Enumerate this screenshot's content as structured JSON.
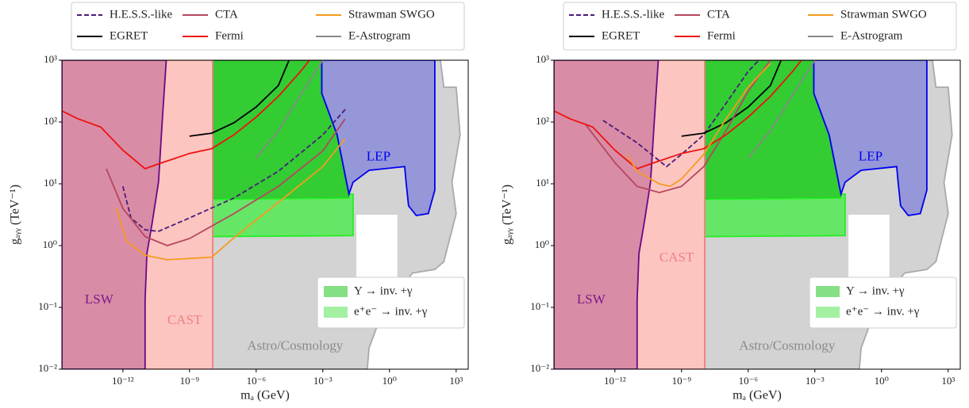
{
  "chart_data": [
    {
      "type": "line",
      "log_x": true,
      "log_y": true,
      "xlabel": "mₐ (GeV)",
      "ylabel": "gₐᵧᵧ (TeV⁻¹)",
      "xlim": [
        1.8e-15,
        3500
      ],
      "ylim": [
        0.01,
        1000
      ],
      "xticks": [
        {
          "value": 1e-12,
          "label": "10⁻¹²"
        },
        {
          "value": 1e-09,
          "label": "10⁻⁹"
        },
        {
          "value": 1e-06,
          "label": "10⁻⁶"
        },
        {
          "value": 0.001,
          "label": "10⁻³"
        },
        {
          "value": 1,
          "label": "10⁰"
        },
        {
          "value": 1000,
          "label": "10³"
        }
      ],
      "yticks": [
        {
          "value": 0.01,
          "label": "10⁻²"
        },
        {
          "value": 0.1,
          "label": "10⁻¹"
        },
        {
          "value": 1,
          "label": "10⁰"
        },
        {
          "value": 10,
          "label": "10¹"
        },
        {
          "value": 100,
          "label": "10²"
        },
        {
          "value": 1000,
          "label": "10³"
        }
      ],
      "regions": [
        {
          "color": "#d3d3d3",
          "edge": "#a9a9a9",
          "x": [
            1.1e-08,
            1.1e-08,
            195,
            280,
            1000,
            1500,
            650,
            1000,
            280,
            110,
            11,
            2.1,
            0.4,
            0.12,
            0.1
          ],
          "y": [
            0.01,
            1000,
            1000,
            365,
            365,
            62,
            10.6,
            3.3,
            0.55,
            0.41,
            0.36,
            0.17,
            0.07,
            0.022,
            0.01
          ]
        },
        {
          "name": "Υ → inv. +γ",
          "color": "#33cc33",
          "edge": "#1a6a1a",
          "x": [
            1.1e-08,
            0.0009,
            0.0009,
            0.0044,
            0.015,
            0.015,
            1.1e-08
          ],
          "y": [
            1000,
            1000,
            290,
            62,
            6.8,
            5.9,
            5.6
          ]
        },
        {
          "name": "e⁺e⁻ → inv. +γ",
          "color": "#66e666",
          "edge": "#22ee22",
          "x": [
            1.1e-08,
            0.015,
            0.015,
            0.023,
            0.023,
            1.1e-08
          ],
          "y": [
            5.6,
            5.9,
            6.8,
            6.8,
            1.45,
            1.4
          ]
        },
        {
          "color": "#9597d8",
          "edge": "#0000ee",
          "x": [
            0.0009,
            110,
            110,
            56,
            16,
            7.2,
            5.6,
            4.8,
            0.12,
            0.023,
            0.015,
            0.0044,
            0.0009
          ],
          "y": [
            1000,
            1000,
            7.9,
            3.3,
            3.07,
            4.4,
            10.6,
            19,
            16.5,
            10.6,
            6.8,
            62,
            290
          ]
        },
        {
          "color": "#ffffff",
          "edge": "#ffffff",
          "x": [
            0.035,
            2.1,
            2.1,
            0.035
          ],
          "y": [
            3.07,
            3.07,
            0.17,
            0.17
          ]
        },
        {
          "color": "#fcc5c0",
          "edge": "#f08080",
          "x": [
            9e-11,
            6e-11,
            4e-11,
            2.1e-11,
            1.2e-11,
            1e-11,
            1e-11,
            1.1e-08,
            1.1e-08
          ],
          "y": [
            1000,
            112,
            10.6,
            2.4,
            0.74,
            0.13,
            0.01,
            0.01,
            1000
          ]
        },
        {
          "color": "#d98ca5",
          "edge": "#6a0a8a",
          "x": [
            1.8e-15,
            9e-11,
            6e-11,
            4e-11,
            2.1e-11,
            1.2e-11,
            1e-11,
            1e-11,
            1.8e-15
          ],
          "y": [
            1000,
            1000,
            112,
            10.6,
            2.4,
            0.74,
            0.13,
            0.01,
            0.01
          ]
        }
      ],
      "series": [
        {
          "name": "H.E.S.S.-like",
          "color": "#4b1b7a",
          "dash": true,
          "x": [
            1e-12,
            2.3e-12,
            1e-11,
            4e-11,
            1e-09,
            1e-07,
            1e-05,
            0.001,
            0.011
          ],
          "values": [
            9.1,
            2.8,
            1.8,
            1.7,
            2.8,
            5.9,
            16,
            62,
            165
          ]
        },
        {
          "name": "EGRET",
          "color": "#000000",
          "x": [
            1e-09,
            1e-08,
            1e-07,
            1e-06,
            1e-05,
            3e-05
          ],
          "values": [
            59,
            66,
            97,
            175,
            390,
            1000
          ]
        },
        {
          "name": "CTA",
          "color": "#b5475f",
          "x": [
            1.8e-13,
            1e-12,
            1e-11,
            1e-10,
            1e-09,
            1e-07,
            1e-05,
            0.001,
            0.01
          ],
          "values": [
            17.5,
            4,
            1.4,
            1,
            1.3,
            3.3,
            9.1,
            34,
            112
          ]
        },
        {
          "name": "Fermi",
          "color": "#ee1111",
          "x": [
            1.8e-15,
            1e-14,
            1e-13,
            1e-12,
            1e-11,
            4e-11,
            1e-09,
            1e-08,
            1e-07,
            1e-06,
            1e-05,
            0.0001,
            0.00025
          ],
          "values": [
            151,
            112,
            83,
            35,
            17.5,
            21,
            31,
            37,
            62,
            120,
            260,
            660,
            1000
          ]
        },
        {
          "name": "Strawman SWGO",
          "color": "#f59b1f",
          "x": [
            5e-13,
            1.5e-12,
            1e-11,
            1e-10,
            1e-08,
            1e-07,
            1e-05,
            0.001,
            0.01
          ],
          "values": [
            4.1,
            1.16,
            0.7,
            0.59,
            0.65,
            1.34,
            5,
            19,
            54
          ]
        },
        {
          "name": "E-Astrogram",
          "color": "#888888",
          "x": [
            1e-06,
            1e-05,
            0.0001,
            0.001
          ],
          "values": [
            26,
            72,
            275,
            1000
          ]
        }
      ],
      "annotations": [
        {
          "text": "LSW",
          "color": "#7a1a8a",
          "x": 8.5e-14,
          "y": 0.13
        },
        {
          "text": "CAST",
          "color": "#f08080",
          "x": 6e-10,
          "y": 0.06
        },
        {
          "text": "Astro/Cosmology",
          "color": "#8a8a8a",
          "x": 5.6e-05,
          "y": 0.023
        },
        {
          "text": "LEP",
          "color": "#0000ee",
          "x": 0.32,
          "y": 27
        }
      ]
    },
    {
      "type": "line",
      "log_x": true,
      "log_y": true,
      "xlabel": "mₐ (GeV)",
      "ylabel": "gₐᵧᵧ (TeV⁻¹)",
      "xlim": [
        1.8e-15,
        3500
      ],
      "ylim": [
        0.01,
        1000
      ],
      "xticks": [
        {
          "value": 1e-12,
          "label": "10⁻¹²"
        },
        {
          "value": 1e-09,
          "label": "10⁻⁹"
        },
        {
          "value": 1e-06,
          "label": "10⁻⁶"
        },
        {
          "value": 0.001,
          "label": "10⁻³"
        },
        {
          "value": 1,
          "label": "10⁰"
        },
        {
          "value": 1000,
          "label": "10³"
        }
      ],
      "yticks": [
        {
          "value": 0.01,
          "label": "10⁻²"
        },
        {
          "value": 0.1,
          "label": "10⁻¹"
        },
        {
          "value": 1,
          "label": "10⁰"
        },
        {
          "value": 10,
          "label": "10¹"
        },
        {
          "value": 100,
          "label": "10²"
        },
        {
          "value": 1000,
          "label": "10³"
        }
      ],
      "regions": [
        {
          "color": "#d3d3d3",
          "edge": "#a9a9a9",
          "x": [
            1.1e-08,
            1.1e-08,
            195,
            280,
            1000,
            1500,
            650,
            1000,
            280,
            110,
            11,
            2.1,
            0.4,
            0.12,
            0.1
          ],
          "y": [
            0.01,
            1000,
            1000,
            365,
            365,
            62,
            10.6,
            3.3,
            0.55,
            0.41,
            0.36,
            0.17,
            0.07,
            0.022,
            0.01
          ]
        },
        {
          "name": "Υ → inv. +γ",
          "color": "#33cc33",
          "edge": "#1a6a1a",
          "x": [
            1.1e-08,
            0.0009,
            0.0009,
            0.0044,
            0.015,
            0.015,
            1.1e-08
          ],
          "y": [
            1000,
            1000,
            290,
            62,
            6.8,
            5.9,
            5.6
          ]
        },
        {
          "name": "e⁺e⁻ → inv. +γ",
          "color": "#66e666",
          "edge": "#22ee22",
          "x": [
            1.1e-08,
            0.015,
            0.015,
            0.023,
            0.023,
            1.1e-08
          ],
          "y": [
            5.6,
            5.9,
            6.8,
            6.8,
            1.45,
            1.4
          ]
        },
        {
          "color": "#9597d8",
          "edge": "#0000ee",
          "x": [
            0.0009,
            110,
            110,
            56,
            16,
            7.2,
            5.6,
            4.8,
            0.12,
            0.023,
            0.015,
            0.0044,
            0.0009
          ],
          "y": [
            1000,
            1000,
            7.9,
            3.3,
            3.07,
            4.4,
            10.6,
            19,
            16.5,
            10.6,
            6.8,
            62,
            290
          ]
        },
        {
          "color": "#ffffff",
          "edge": "#ffffff",
          "x": [
            0.035,
            2.1,
            2.1,
            0.035
          ],
          "y": [
            3.07,
            3.07,
            0.17,
            0.17
          ]
        },
        {
          "color": "#fcc5c0",
          "edge": "#f08080",
          "x": [
            9e-11,
            6e-11,
            4e-11,
            2.1e-11,
            1.2e-11,
            1e-11,
            1e-11,
            1.1e-08,
            1.1e-08
          ],
          "y": [
            1000,
            112,
            10.6,
            2.4,
            0.74,
            0.13,
            0.01,
            0.01,
            1000
          ]
        },
        {
          "color": "#d98ca5",
          "edge": "#6a0a8a",
          "x": [
            1.8e-15,
            9e-11,
            6e-11,
            4e-11,
            2.1e-11,
            1.2e-11,
            1e-11,
            1e-11,
            1.8e-15
          ],
          "y": [
            1000,
            1000,
            112,
            10.6,
            2.4,
            0.74,
            0.13,
            0.01,
            0.01
          ]
        }
      ],
      "series": [
        {
          "name": "H.E.S.S.-like",
          "color": "#4b1b7a",
          "dash": true,
          "x": [
            2.9e-13,
            1e-11,
            2.1e-10,
            1e-09,
            1e-08,
            1e-07,
            1e-06,
            3e-06
          ],
          "values": [
            106,
            46,
            19,
            30,
            62,
            200,
            660,
            1000
          ]
        },
        {
          "name": "EGRET",
          "color": "#000000",
          "x": [
            1e-09,
            1e-08,
            1e-07,
            1e-06,
            1e-05,
            3e-05
          ],
          "values": [
            59,
            66,
            97,
            175,
            390,
            1000
          ]
        },
        {
          "name": "CTA",
          "color": "#b5475f",
          "x": [
            5e-14,
            1e-12,
            1e-11,
            1e-10,
            1e-09,
            1e-08,
            1e-07,
            1e-06,
            1e-05
          ],
          "values": [
            89,
            22,
            9.1,
            7.2,
            9.1,
            19,
            72,
            316,
            1000
          ]
        },
        {
          "name": "Fermi",
          "color": "#ee1111",
          "x": [
            1.8e-15,
            1e-14,
            1e-13,
            1e-12,
            1e-11,
            4e-11,
            1e-09,
            1e-08,
            1e-07,
            1e-06,
            1e-05,
            0.0001,
            0.00025
          ],
          "values": [
            151,
            112,
            83,
            35,
            17.5,
            21,
            31,
            37,
            62,
            120,
            260,
            660,
            1000
          ]
        },
        {
          "name": "Strawman SWGO",
          "color": "#f59b1f",
          "x": [
            3.5e-12,
            1e-11,
            1e-10,
            3e-10,
            1e-09,
            1e-08,
            1e-07,
            1e-06,
            1e-05
          ],
          "values": [
            30,
            16,
            10,
            9.1,
            12,
            30,
            112,
            366,
            890
          ]
        },
        {
          "name": "E-Astrogram",
          "color": "#888888",
          "x": [
            1e-06,
            1e-05,
            0.0001,
            0.001
          ],
          "values": [
            26,
            72,
            275,
            1000
          ]
        }
      ],
      "annotations": [
        {
          "text": "LSW",
          "color": "#7a1a8a",
          "x": 8.5e-14,
          "y": 0.13
        },
        {
          "text": "CAST",
          "color": "#f08080",
          "x": 6e-10,
          "y": 0.62
        },
        {
          "text": "Astro/Cosmology",
          "color": "#8a8a8a",
          "x": 5.6e-05,
          "y": 0.023
        },
        {
          "text": "LEP",
          "color": "#0000ee",
          "x": 0.32,
          "y": 27
        }
      ]
    }
  ]
}
